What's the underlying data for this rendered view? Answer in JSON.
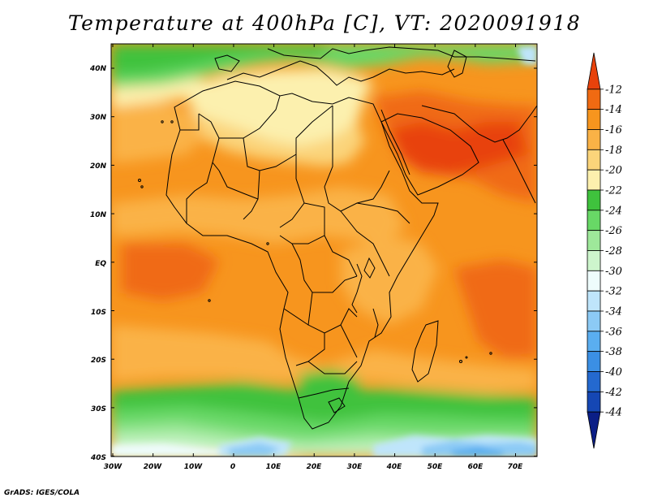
{
  "title": "Temperature at 400hPa [C], VT: 2020091918",
  "credit": "GrADS: IGES/COLA",
  "map": {
    "lat_ticks": [
      "40N",
      "30N",
      "20N",
      "10N",
      "EQ",
      "10S",
      "20S",
      "30S",
      "40S"
    ],
    "lon_ticks": [
      "30W",
      "20W",
      "10W",
      "0",
      "10E",
      "20E",
      "30E",
      "40E",
      "50E",
      "60E",
      "70E"
    ]
  },
  "colorbar": {
    "labels": [
      "-12",
      "-14",
      "-16",
      "-18",
      "-20",
      "-22",
      "-24",
      "-26",
      "-28",
      "-30",
      "-32",
      "-34",
      "-36",
      "-38",
      "-40",
      "-42",
      "-44"
    ],
    "colors": [
      "#e8420c",
      "#f06a12",
      "#f7951e",
      "#fab246",
      "#fbd47a",
      "#fcf0ae",
      "#3fc23d",
      "#68d866",
      "#9ee89a",
      "#cdf5cc",
      "#eefcfc",
      "#bfe5fb",
      "#8ccaf5",
      "#5aaef0",
      "#3b8fe4",
      "#2469cf",
      "#1547b4",
      "#0b1e86"
    ]
  }
}
